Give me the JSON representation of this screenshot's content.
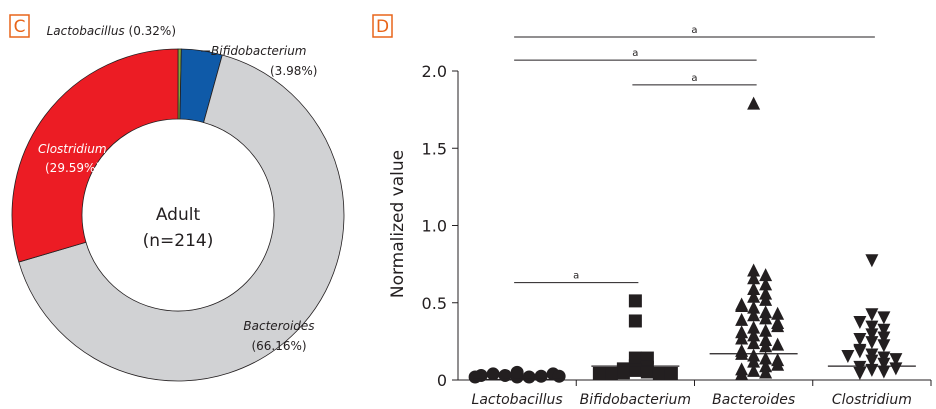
{
  "chart_data": [
    {
      "panel": "C",
      "type": "pie",
      "center_text": "Adult",
      "center_subtext": "(n=214)",
      "slices": [
        {
          "name": "Lactobacillus",
          "pct_label": "(0.32%)",
          "value": 0.32,
          "color": "#86a83a"
        },
        {
          "name": "Bifidobacterium",
          "pct_label": "(3.98%)",
          "value": 3.98,
          "color": "#0f5aa8"
        },
        {
          "name": "Bacteroides",
          "pct_label": "(66.16%)",
          "value": 66.16,
          "color": "#d1d2d4"
        },
        {
          "name": "Clostridium",
          "pct_label": "(29.59%)",
          "value": 29.59,
          "color": "#ec1c24"
        }
      ]
    },
    {
      "panel": "D",
      "type": "scatter",
      "ylabel": "Normalized value",
      "ylim": [
        0,
        2.0
      ],
      "yticks": [
        "0",
        "0.5",
        "1.0",
        "1.5",
        "2.0"
      ],
      "ytick_values": [
        0,
        0.5,
        1.0,
        1.5,
        2.0
      ],
      "categories": [
        "Lactobacillus",
        "Bifidobacterium",
        "Bacteroides",
        "Clostridium"
      ],
      "series": [
        {
          "category": "Lactobacillus",
          "marker": "circle",
          "mean": 0.003,
          "values": [
            0,
            0,
            0.01,
            0.005,
            0.02,
            0.03,
            0.02,
            0.01,
            0.005,
            0
          ]
        },
        {
          "category": "Bifidobacterium",
          "marker": "square",
          "mean": 0.09,
          "values": [
            0.47,
            0.34,
            0.1,
            0.1,
            0.05,
            0.04,
            0.03,
            0.02,
            0.01,
            0.005,
            0,
            0,
            0,
            0
          ]
        },
        {
          "category": "Bacteroides",
          "marker": "triangle-up",
          "mean": 0.17,
          "values": [
            1.75,
            0.67,
            0.62,
            0.64,
            0.58,
            0.55,
            0.52,
            0.5,
            0.48,
            0.45,
            0.43,
            0.4,
            0.38,
            0.36,
            0.35,
            0.33,
            0.3,
            0.28,
            0.25,
            0.22,
            0.2,
            0.18,
            0.15,
            0.12,
            0.1,
            0.08,
            0.05,
            0.03,
            0.02,
            0.01,
            0,
            0.27,
            0.31,
            0.44,
            0.13,
            0.06,
            0.09,
            0.19,
            0.23,
            0.39
          ]
        },
        {
          "category": "Clostridium",
          "marker": "triangle-down",
          "mean": 0.09,
          "values": [
            0.73,
            0.38,
            0.36,
            0.33,
            0.3,
            0.28,
            0.25,
            0.23,
            0.2,
            0.18,
            0.15,
            0.12,
            0.1,
            0.08,
            0.06,
            0.04,
            0.03,
            0.02,
            0.01,
            0,
            0.14,
            0.22,
            0.09,
            0.11
          ]
        }
      ],
      "significance": [
        {
          "from": "Lactobacillus",
          "to": "Bifidobacterium",
          "y": 0.63,
          "label": "a"
        },
        {
          "from": "Bifidobacterium",
          "to": "Bacteroides",
          "y": 1.91,
          "label": "a"
        },
        {
          "from": "Lactobacillus",
          "to": "Bacteroides",
          "y": 2.07,
          "label": "a"
        },
        {
          "from": "Lactobacillus",
          "to": "Clostridium",
          "y": 2.22,
          "label": "a"
        }
      ]
    }
  ]
}
